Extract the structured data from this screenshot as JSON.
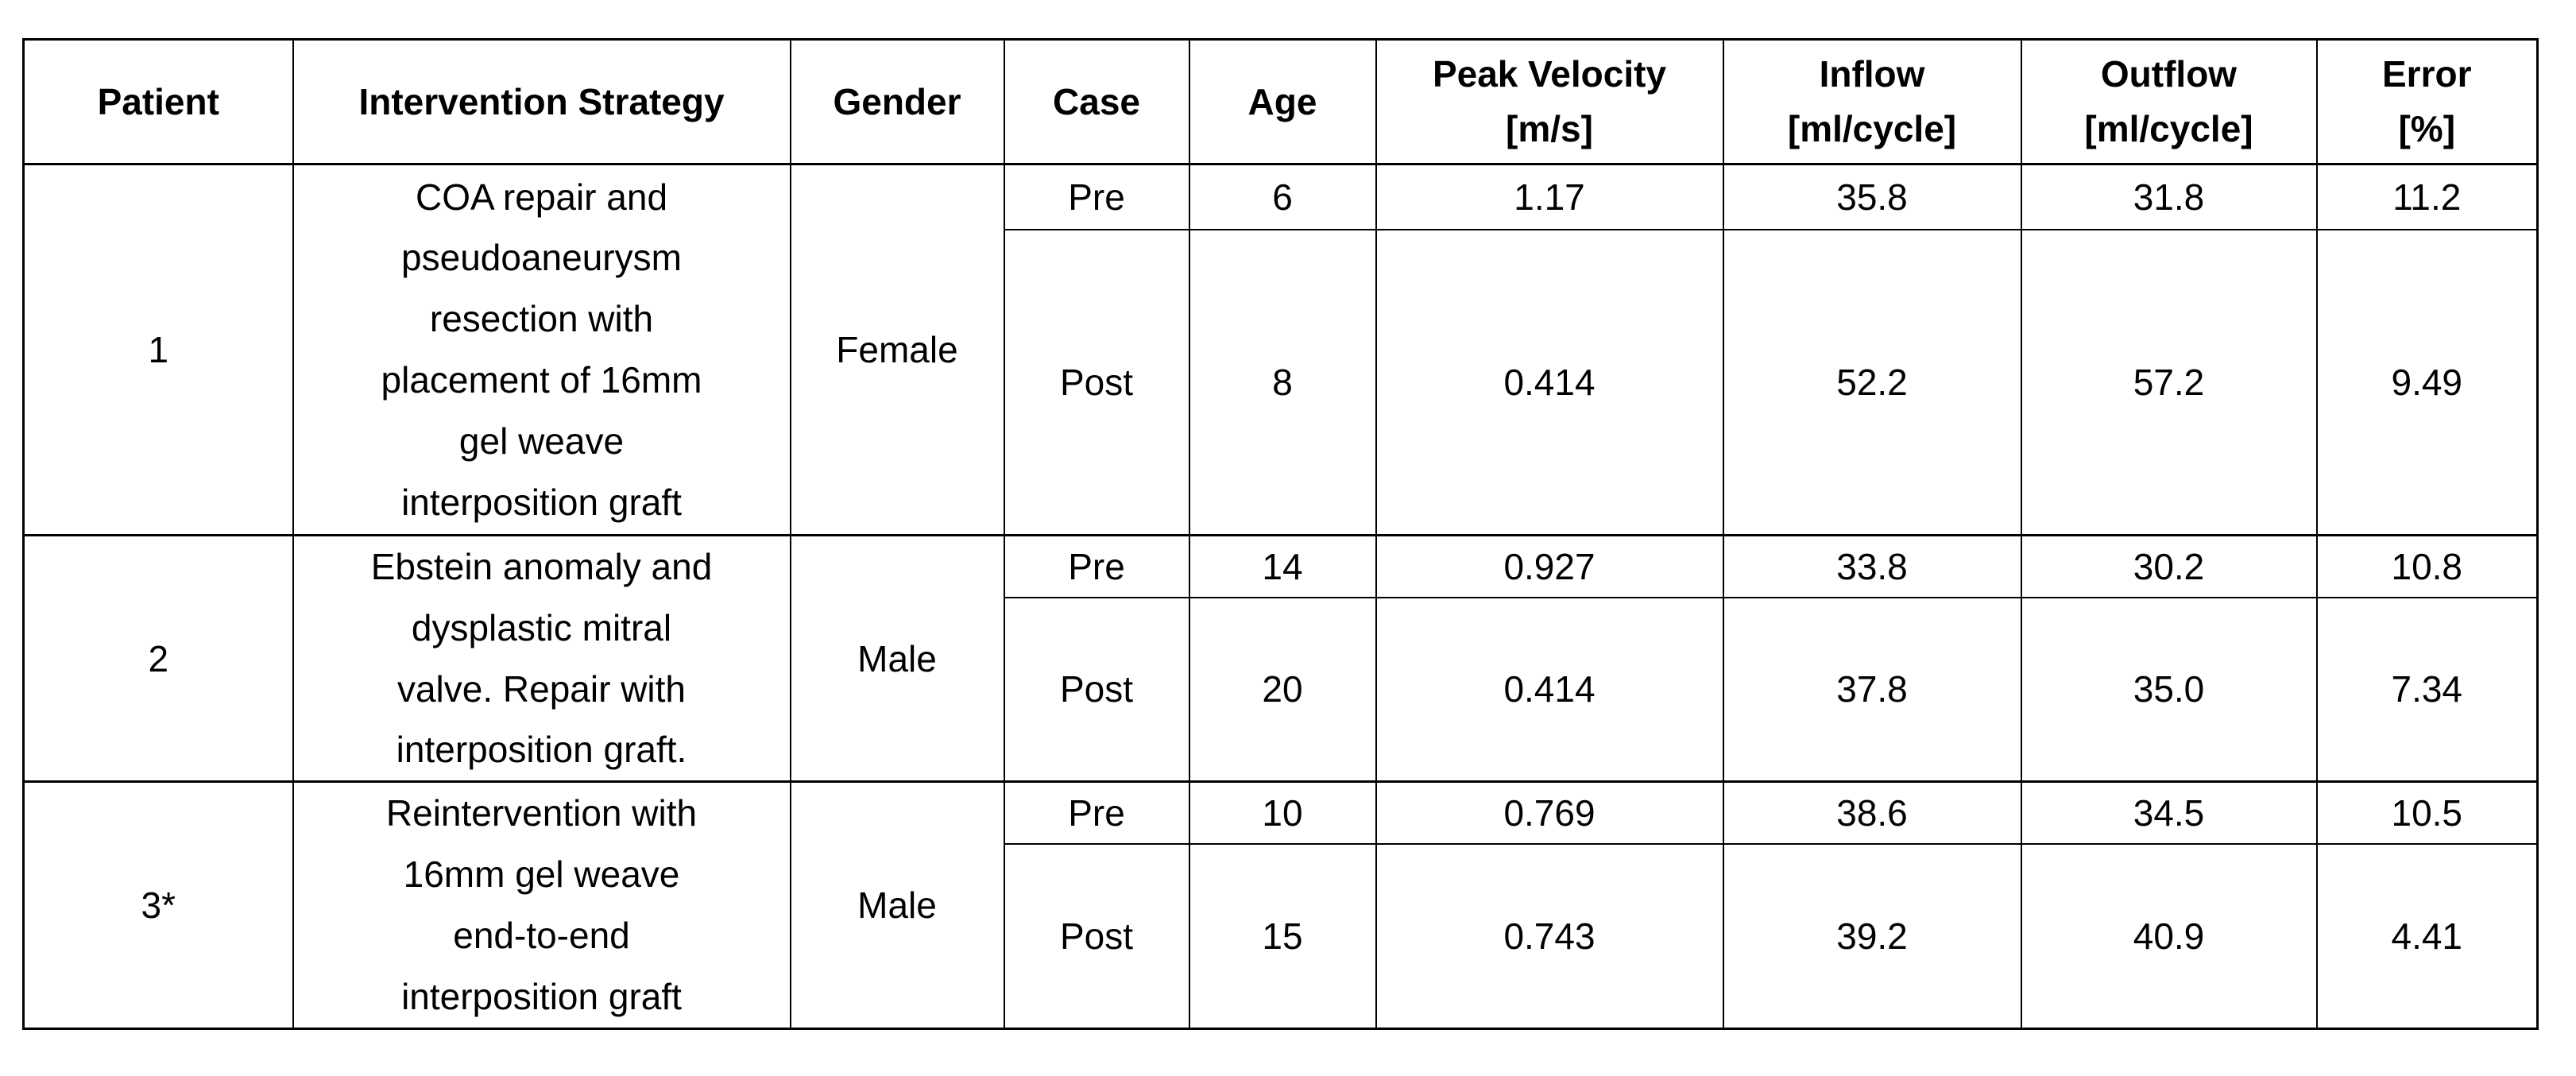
{
  "table": {
    "headers": [
      "Patient",
      "Intervention Strategy",
      "Gender",
      "Case",
      "Age",
      "Peak Velocity\n[m/s]",
      "Inflow\n[ml/cycle]",
      "Outflow\n[ml/cycle]",
      "Error\n[%]"
    ],
    "patients": [
      {
        "id": "1",
        "intervention": "COA repair and\npseudoaneurysm\nresection with\nplacement of 16mm\ngel weave\ninterposition graft",
        "gender": "Female",
        "pre": {
          "case_label": "Pre",
          "age": "6",
          "peak_velocity": "1.17",
          "inflow": "35.8",
          "outflow": "31.8",
          "error": "11.2"
        },
        "post": {
          "case_label": "Post",
          "age": "8",
          "peak_velocity": "0.414",
          "inflow": "52.2",
          "outflow": "57.2",
          "error": "9.49"
        }
      },
      {
        "id": "2",
        "intervention": "Ebstein anomaly and\ndysplastic mitral\nvalve. Repair with\ninterposition graft.",
        "gender": "Male",
        "pre": {
          "case_label": "Pre",
          "age": "14",
          "peak_velocity": "0.927",
          "inflow": "33.8",
          "outflow": "30.2",
          "error": "10.8"
        },
        "post": {
          "case_label": "Post",
          "age": "20",
          "peak_velocity": "0.414",
          "inflow": "37.8",
          "outflow": "35.0",
          "error": "7.34"
        }
      },
      {
        "id": "3*",
        "intervention": "Reintervention with\n16mm gel weave\nend-to-end\ninterposition graft",
        "gender": "Male",
        "pre": {
          "case_label": "Pre",
          "age": "10",
          "peak_velocity": "0.769",
          "inflow": "38.6",
          "outflow": "34.5",
          "error": "10.5"
        },
        "post": {
          "case_label": "Post",
          "age": "15",
          "peak_velocity": "0.743",
          "inflow": "39.2",
          "outflow": "40.9",
          "error": "4.41"
        }
      }
    ]
  }
}
